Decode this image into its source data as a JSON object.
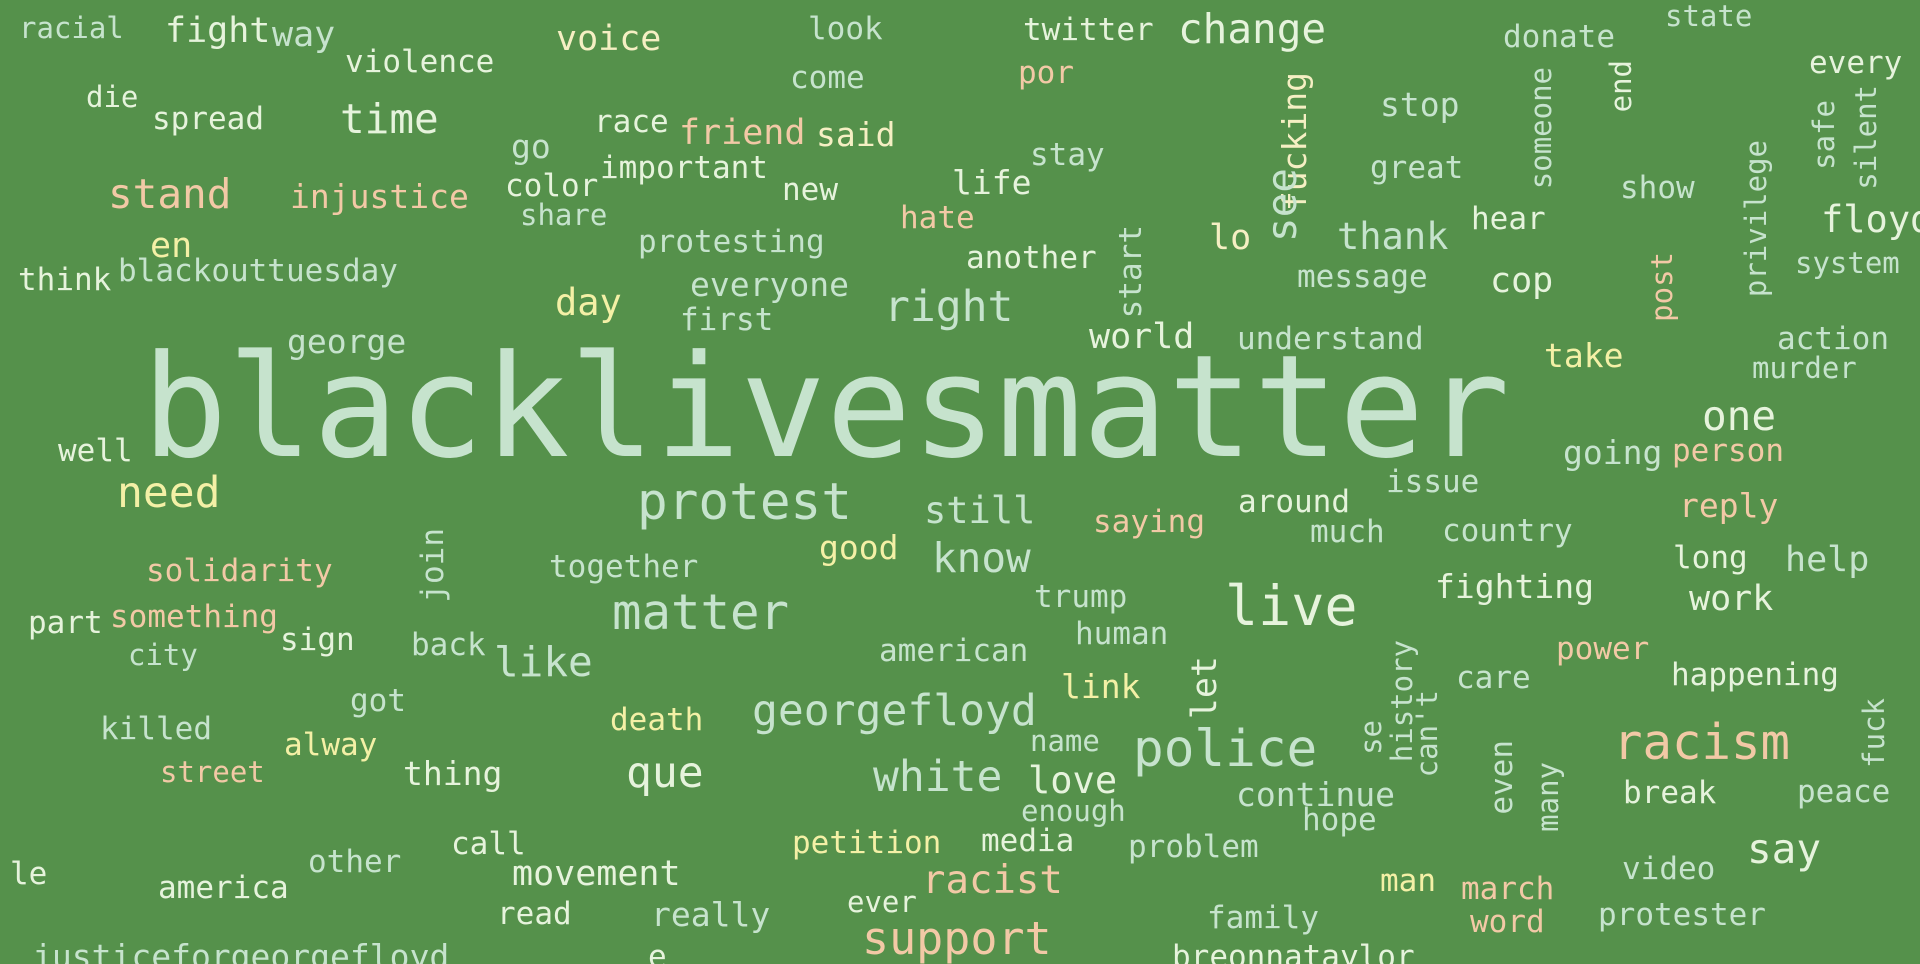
{
  "words": [
    {
      "id": "w1",
      "text": "racial",
      "c": "mint"
    },
    {
      "id": "w2",
      "text": "fight",
      "c": "pale"
    },
    {
      "id": "w3",
      "text": "way",
      "c": "mint"
    },
    {
      "id": "w4",
      "text": "violence",
      "c": "pale"
    },
    {
      "id": "w5",
      "text": "voice",
      "c": "cream"
    },
    {
      "id": "w6",
      "text": "look",
      "c": "mint"
    },
    {
      "id": "w7",
      "text": "twitter",
      "c": "pale"
    },
    {
      "id": "w8",
      "text": "change",
      "c": "pale"
    },
    {
      "id": "w9",
      "text": "donate",
      "c": "mint"
    },
    {
      "id": "w10",
      "text": "state",
      "c": "mint"
    },
    {
      "id": "w11",
      "text": "every",
      "c": "pale"
    },
    {
      "id": "w12",
      "text": "die",
      "c": "pale"
    },
    {
      "id": "w13",
      "text": "spread",
      "c": "pale"
    },
    {
      "id": "w14",
      "text": "time",
      "c": "pale"
    },
    {
      "id": "w15",
      "text": "come",
      "c": "mint"
    },
    {
      "id": "w16",
      "text": "por",
      "c": "peach"
    },
    {
      "id": "w17",
      "text": "fucking",
      "c": "cream"
    },
    {
      "id": "w18",
      "text": "stop",
      "c": "mint"
    },
    {
      "id": "w19",
      "text": "someone",
      "c": "mint"
    },
    {
      "id": "w20",
      "text": "end",
      "c": "pale"
    },
    {
      "id": "w21",
      "text": "race",
      "c": "pale"
    },
    {
      "id": "w22",
      "text": "friend",
      "c": "peach"
    },
    {
      "id": "w23",
      "text": "said",
      "c": "cream"
    },
    {
      "id": "w24",
      "text": "go",
      "c": "mint"
    },
    {
      "id": "w25",
      "text": "important",
      "c": "pale"
    },
    {
      "id": "w26",
      "text": "stay",
      "c": "mint"
    },
    {
      "id": "w27",
      "text": "great",
      "c": "mint"
    },
    {
      "id": "w28",
      "text": "safe",
      "c": "mint"
    },
    {
      "id": "w29",
      "text": "silent",
      "c": "mint"
    },
    {
      "id": "w30",
      "text": "stand",
      "c": "peach"
    },
    {
      "id": "w31",
      "text": "injustice",
      "c": "peach"
    },
    {
      "id": "w32",
      "text": "color",
      "c": "pale"
    },
    {
      "id": "w33",
      "text": "new",
      "c": "pale"
    },
    {
      "id": "w34",
      "text": "life",
      "c": "pale"
    },
    {
      "id": "w35",
      "text": "show",
      "c": "mint"
    },
    {
      "id": "w36",
      "text": "privilege",
      "c": "mint"
    },
    {
      "id": "w37",
      "text": "share",
      "c": "mint"
    },
    {
      "id": "w38",
      "text": "hate",
      "c": "peach"
    },
    {
      "id": "w39",
      "text": "see",
      "c": "mint"
    },
    {
      "id": "w40",
      "text": "hear",
      "c": "pale"
    },
    {
      "id": "w41",
      "text": "floyd",
      "c": "pale"
    },
    {
      "id": "w42",
      "text": "en",
      "c": "yellow"
    },
    {
      "id": "w43",
      "text": "protesting",
      "c": "mint"
    },
    {
      "id": "w44",
      "text": "another",
      "c": "pale"
    },
    {
      "id": "w45",
      "text": "lo",
      "c": "cream"
    },
    {
      "id": "w46",
      "text": "thank",
      "c": "mint"
    },
    {
      "id": "w47",
      "text": "system",
      "c": "mint"
    },
    {
      "id": "w48",
      "text": "think",
      "c": "pale"
    },
    {
      "id": "w49",
      "text": "blackouttuesday",
      "c": "mint"
    },
    {
      "id": "w50",
      "text": "start",
      "c": "mint"
    },
    {
      "id": "w51",
      "text": "everyone",
      "c": "mint"
    },
    {
      "id": "w52",
      "text": "message",
      "c": "mint"
    },
    {
      "id": "w53",
      "text": "cop",
      "c": "pale"
    },
    {
      "id": "w54",
      "text": "post",
      "c": "peach"
    },
    {
      "id": "w55",
      "text": "day",
      "c": "yellow"
    },
    {
      "id": "w56",
      "text": "first",
      "c": "mint"
    },
    {
      "id": "w57",
      "text": "right",
      "c": "mint"
    },
    {
      "id": "w58",
      "text": "george",
      "c": "mint"
    },
    {
      "id": "w59",
      "text": "world",
      "c": "pale"
    },
    {
      "id": "w60",
      "text": "understand",
      "c": "mint"
    },
    {
      "id": "w61",
      "text": "action",
      "c": "mint"
    },
    {
      "id": "w62",
      "text": "take",
      "c": "yellow"
    },
    {
      "id": "w63",
      "text": "murder",
      "c": "mint"
    },
    {
      "id": "w64",
      "text": "blacklivesmatter",
      "c": "mint"
    },
    {
      "id": "w65",
      "text": "one",
      "c": "pale"
    },
    {
      "id": "w66",
      "text": "well",
      "c": "pale"
    },
    {
      "id": "w67",
      "text": "going",
      "c": "mint"
    },
    {
      "id": "w68",
      "text": "person",
      "c": "peach"
    },
    {
      "id": "w69",
      "text": "need",
      "c": "yellow"
    },
    {
      "id": "w70",
      "text": "issue",
      "c": "mint"
    },
    {
      "id": "w71",
      "text": "protest",
      "c": "mint"
    },
    {
      "id": "w72",
      "text": "still",
      "c": "mint"
    },
    {
      "id": "w73",
      "text": "around",
      "c": "pale"
    },
    {
      "id": "w74",
      "text": "reply",
      "c": "peach"
    },
    {
      "id": "w75",
      "text": "saying",
      "c": "peach"
    },
    {
      "id": "w76",
      "text": "much",
      "c": "mint"
    },
    {
      "id": "w77",
      "text": "country",
      "c": "mint"
    },
    {
      "id": "w78",
      "text": "good",
      "c": "yellow"
    },
    {
      "id": "w79",
      "text": "join",
      "c": "mint"
    },
    {
      "id": "w80",
      "text": "together",
      "c": "mint"
    },
    {
      "id": "w81",
      "text": "know",
      "c": "mint"
    },
    {
      "id": "w82",
      "text": "long",
      "c": "pale"
    },
    {
      "id": "w83",
      "text": "help",
      "c": "mint"
    },
    {
      "id": "w84",
      "text": "solidarity",
      "c": "peach"
    },
    {
      "id": "w85",
      "text": "live",
      "c": "pale"
    },
    {
      "id": "w86",
      "text": "fighting",
      "c": "pale"
    },
    {
      "id": "w87",
      "text": "trump",
      "c": "mint"
    },
    {
      "id": "w88",
      "text": "work",
      "c": "pale"
    },
    {
      "id": "w89",
      "text": "matter",
      "c": "mint"
    },
    {
      "id": "w90",
      "text": "part",
      "c": "pale"
    },
    {
      "id": "w91",
      "text": "something",
      "c": "peach"
    },
    {
      "id": "w92",
      "text": "sign",
      "c": "pale"
    },
    {
      "id": "w93",
      "text": "back",
      "c": "mint"
    },
    {
      "id": "w94",
      "text": "human",
      "c": "mint"
    },
    {
      "id": "w95",
      "text": "power",
      "c": "peach"
    },
    {
      "id": "w96",
      "text": "history",
      "c": "mint"
    },
    {
      "id": "w97",
      "text": "city",
      "c": "mint"
    },
    {
      "id": "w98",
      "text": "like",
      "c": "mint"
    },
    {
      "id": "w99",
      "text": "american",
      "c": "mint"
    },
    {
      "id": "w100",
      "text": "let",
      "c": "pale"
    },
    {
      "id": "w101",
      "text": "care",
      "c": "mint"
    },
    {
      "id": "w102",
      "text": "happening",
      "c": "pale"
    },
    {
      "id": "w103",
      "text": "link",
      "c": "yellow"
    },
    {
      "id": "w104",
      "text": "can't",
      "c": "mint"
    },
    {
      "id": "w105",
      "text": "got",
      "c": "mint"
    },
    {
      "id": "w106",
      "text": "georgefloyd",
      "c": "mint"
    },
    {
      "id": "w107",
      "text": "killed",
      "c": "mint"
    },
    {
      "id": "w108",
      "text": "death",
      "c": "yellow"
    },
    {
      "id": "w109",
      "text": "fuck",
      "c": "mint"
    },
    {
      "id": "w110",
      "text": "racism",
      "c": "peach"
    },
    {
      "id": "w111",
      "text": "alway",
      "c": "yellow"
    },
    {
      "id": "w112",
      "text": "name",
      "c": "mint"
    },
    {
      "id": "w113",
      "text": "se",
      "c": "mint"
    },
    {
      "id": "w114",
      "text": "police",
      "c": "mint"
    },
    {
      "id": "w115",
      "text": "street",
      "c": "peach"
    },
    {
      "id": "w116",
      "text": "thing",
      "c": "pale"
    },
    {
      "id": "w117",
      "text": "que",
      "c": "pale"
    },
    {
      "id": "w118",
      "text": "white",
      "c": "mint"
    },
    {
      "id": "w119",
      "text": "love",
      "c": "pale"
    },
    {
      "id": "w120",
      "text": "continue",
      "c": "mint"
    },
    {
      "id": "w121",
      "text": "even",
      "c": "mint"
    },
    {
      "id": "w122",
      "text": "many",
      "c": "mint"
    },
    {
      "id": "w123",
      "text": "break",
      "c": "pale"
    },
    {
      "id": "w124",
      "text": "peace",
      "c": "mint"
    },
    {
      "id": "w125",
      "text": "enough",
      "c": "mint"
    },
    {
      "id": "w126",
      "text": "hope",
      "c": "mint"
    },
    {
      "id": "w127",
      "text": "say",
      "c": "pale"
    },
    {
      "id": "w128",
      "text": "le",
      "c": "pale"
    },
    {
      "id": "w129",
      "text": "other",
      "c": "mint"
    },
    {
      "id": "w130",
      "text": "call",
      "c": "pale"
    },
    {
      "id": "w131",
      "text": "petition",
      "c": "yellow"
    },
    {
      "id": "w132",
      "text": "media",
      "c": "pale"
    },
    {
      "id": "w133",
      "text": "problem",
      "c": "mint"
    },
    {
      "id": "w134",
      "text": "america",
      "c": "pale"
    },
    {
      "id": "w135",
      "text": "movement",
      "c": "pale"
    },
    {
      "id": "w136",
      "text": "racist",
      "c": "peach"
    },
    {
      "id": "w137",
      "text": "man",
      "c": "yellow"
    },
    {
      "id": "w138",
      "text": "march",
      "c": "peach"
    },
    {
      "id": "w139",
      "text": "video",
      "c": "mint"
    },
    {
      "id": "w140",
      "text": "read",
      "c": "pale"
    },
    {
      "id": "w141",
      "text": "really",
      "c": "mint"
    },
    {
      "id": "w142",
      "text": "ever",
      "c": "pale"
    },
    {
      "id": "w143",
      "text": "family",
      "c": "mint"
    },
    {
      "id": "w144",
      "text": "word",
      "c": "peach"
    },
    {
      "id": "w145",
      "text": "protester",
      "c": "mint"
    },
    {
      "id": "w146",
      "text": "justiceforgeorgefloyd",
      "c": "mint"
    },
    {
      "id": "w147",
      "text": "e",
      "c": "pale"
    },
    {
      "id": "w148",
      "text": "support",
      "c": "peach"
    },
    {
      "id": "w149",
      "text": "breonnataylor",
      "c": "pale"
    }
  ],
  "colors": {
    "background": "#55914b",
    "mint": "#c6e3cd",
    "pale": "#e6f3dc",
    "cream": "#f5efc3",
    "yellow": "#f4f0a6",
    "peach": "#f2c9a6"
  }
}
